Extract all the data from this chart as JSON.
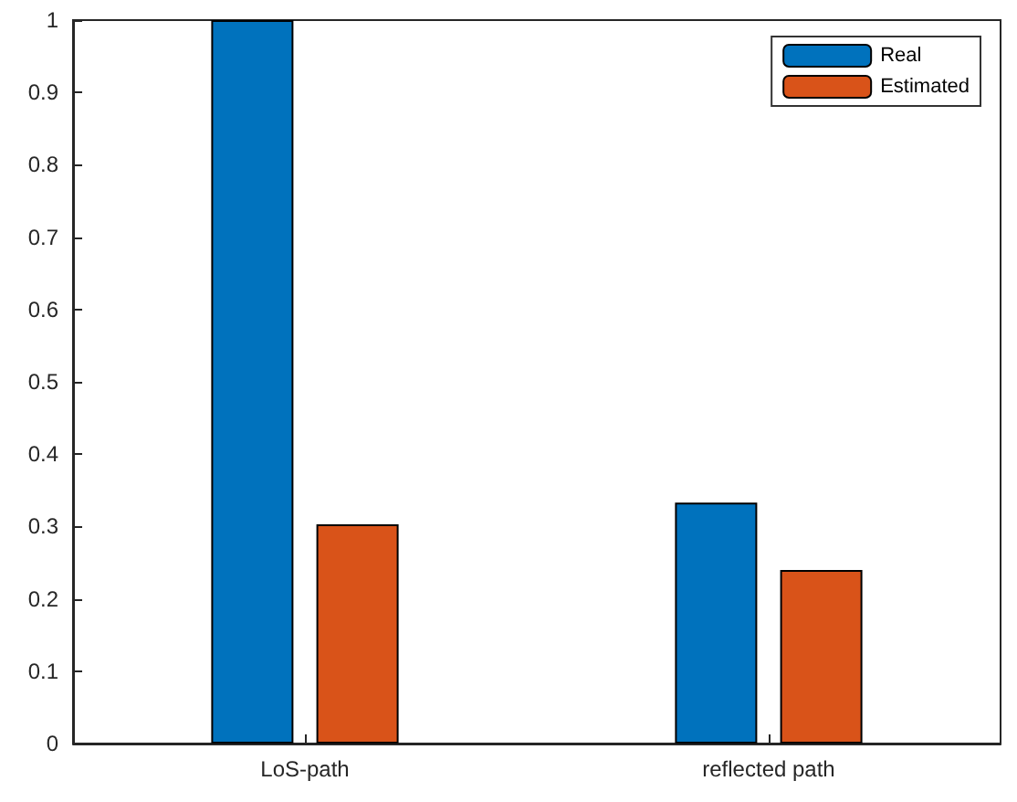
{
  "chart_data": {
    "type": "bar",
    "categories": [
      "LoS-path",
      "reflected path"
    ],
    "series": [
      {
        "name": "Real",
        "color": "#0072bd",
        "values": [
          1,
          0.333
        ]
      },
      {
        "name": "Estimated",
        "color": "#d95319",
        "values": [
          0.303,
          0.24
        ]
      }
    ],
    "ylim": [
      0,
      1
    ],
    "yticks": [
      0,
      0.1,
      0.2,
      0.3,
      0.4,
      0.5,
      0.6,
      0.7,
      0.8,
      0.9,
      1
    ],
    "grid": false,
    "legend": "top right"
  }
}
